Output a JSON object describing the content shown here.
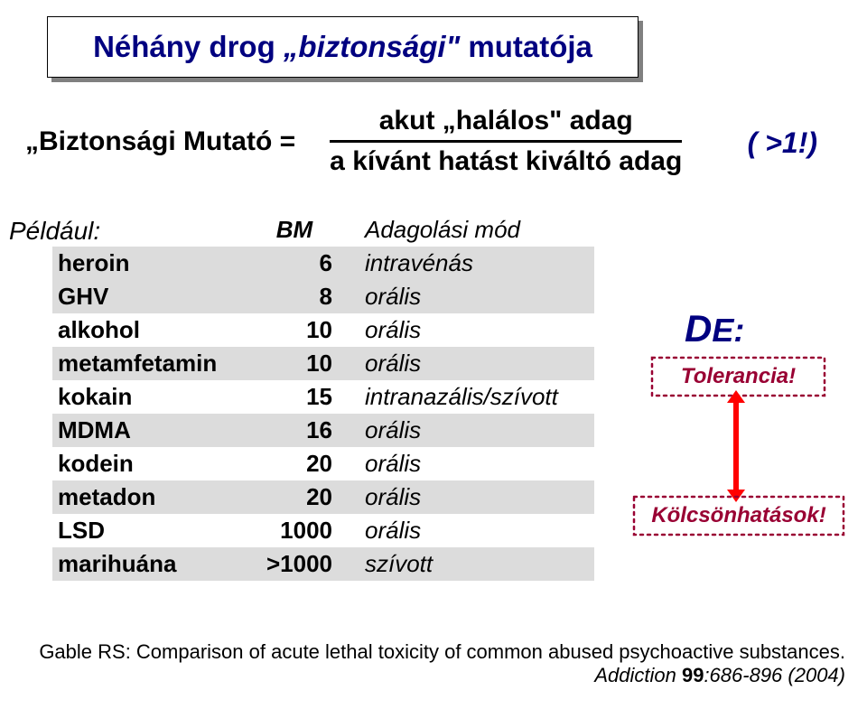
{
  "colors": {
    "title_text": "#000080",
    "body_text": "#000000",
    "callout_text": "#990033",
    "callout_border": "#990033",
    "shade_row": "#dcdcdc",
    "arrow": "#ff0000",
    "box_shadow": "#808080",
    "background": "#ffffff"
  },
  "typography": {
    "title_fontsize": 33,
    "body_fontsize": 26,
    "formula_fontsize": 30,
    "callout_fontsize": 24,
    "footer_fontsize": 22
  },
  "title": {
    "part1": "Néhány drog ",
    "part2_italic": "„biztonsági\"",
    "part3": " mutatója"
  },
  "formula": {
    "lhs": "„Biztonsági Mutató =",
    "numerator": "akut „halálos\" adag",
    "denominator": "a kívánt hatást kiváltó adag"
  },
  "gt1": "( >1!)",
  "example_label": "Például:",
  "table": {
    "header": {
      "bm": "BM",
      "mode": "Adagolási mód"
    },
    "rows": [
      {
        "name": "heroin",
        "bm": "6",
        "mode": "intravénás",
        "shade": true
      },
      {
        "name": "GHV",
        "bm": "8",
        "mode": "orális",
        "shade": true
      },
      {
        "name": "alkohol",
        "bm": "10",
        "mode": "orális",
        "shade": false
      },
      {
        "name": "metamfetamin",
        "bm": "10",
        "mode": "orális",
        "shade": true
      },
      {
        "name": "kokain",
        "bm": "15",
        "mode": "intranazális/szívott",
        "shade": false
      },
      {
        "name": "MDMA",
        "bm": "16",
        "mode": "orális",
        "shade": true
      },
      {
        "name": "kodein",
        "bm": "20",
        "mode": "orális",
        "shade": false
      },
      {
        "name": "metadon",
        "bm": "20",
        "mode": "orális",
        "shade": true
      },
      {
        "name": "LSD",
        "bm": "1000",
        "mode": "orális",
        "shade": false
      },
      {
        "name": "marihuána",
        "bm": ">1000",
        "mode": "szívott",
        "shade": true
      }
    ]
  },
  "de_label": {
    "prefix": "D",
    "suffix": "E:"
  },
  "callouts": {
    "tolerance": "Tolerancia!",
    "interactions": "Kölcsönhatások!"
  },
  "footer": {
    "line1": "Gable RS: Comparison of acute lethal toxicity of common abused psychoactive substances.",
    "journal": "Addiction ",
    "vol": "99",
    "pages": ":686-896 (2004)"
  }
}
